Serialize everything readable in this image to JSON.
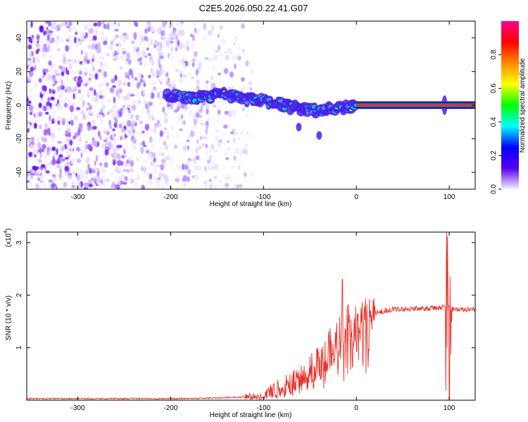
{
  "title": "C2E5.2026.050.22.41.G07",
  "chart_data": [
    {
      "type": "heatmap",
      "name": "spectrogram",
      "xlabel": "Height of straight line (km)",
      "ylabel": "Frequency (Hz)",
      "xlim": [
        -355,
        128
      ],
      "ylim": [
        -50,
        50
      ],
      "x_ticks": [
        -300,
        -200,
        -100,
        0,
        100
      ],
      "x_tick_labels": [
        "-300",
        "-200",
        "-100",
        "0",
        "100"
      ],
      "y_ticks": [
        -40,
        -20,
        0,
        20,
        40
      ],
      "y_tick_labels": [
        "-40",
        "-20",
        "0",
        "20",
        "40"
      ],
      "noise_region_x": [
        -355,
        -120
      ],
      "signal_track": {
        "x": [
          -205,
          -180,
          -160,
          -140,
          -120,
          -100,
          -80,
          -60,
          -40,
          -20,
          0,
          128
        ],
        "freq": [
          6,
          4,
          5,
          6,
          4,
          3,
          0,
          -2,
          -3,
          -2,
          0,
          0
        ]
      },
      "spikes": [
        {
          "x": -62,
          "freq": -13
        },
        {
          "x": -40,
          "freq": -18
        },
        {
          "x": 95,
          "freq": 0
        }
      ],
      "colorbar": {
        "label": "Normalized spectral amplitude",
        "range": [
          0,
          1
        ],
        "ticks": [
          0.0,
          0.2,
          0.4,
          0.6,
          0.8
        ],
        "tick_labels": [
          "0.0",
          "0.2",
          "0.4",
          "0.6",
          "0.8"
        ],
        "colors": [
          "#f4f0ff",
          "#5500ee",
          "#0000ff",
          "#00ffff",
          "#00ff00",
          "#ffff00",
          "#ff8800",
          "#ff0000",
          "#ff0088"
        ]
      },
      "track_color": "#00c8c8",
      "track_core_color": "#e81850"
    },
    {
      "type": "line",
      "name": "snr",
      "xlabel": "Height of straight line (km)",
      "ylabel": "SNR (10 * v/v)",
      "scale_label": "(x10",
      "scale_exponent": "4",
      "scale_suffix": ")",
      "xlim": [
        -355,
        128
      ],
      "ylim": [
        0,
        3.2
      ],
      "x_ticks": [
        -300,
        -200,
        -100,
        0,
        100
      ],
      "x_tick_labels": [
        "-300",
        "-200",
        "-100",
        "0",
        "100"
      ],
      "y_ticks": [
        1,
        2,
        3
      ],
      "y_tick_labels": [
        "1",
        "2",
        "3"
      ],
      "color": "#e8312a",
      "series": [
        {
          "name": "SNR",
          "x": [
            -355,
            -300,
            -250,
            -200,
            -150,
            -120,
            -100,
            -85,
            -70,
            -55,
            -40,
            -30,
            -20,
            -10,
            0,
            10,
            20,
            30,
            40,
            60,
            80,
            90,
            95,
            100,
            105,
            110,
            128
          ],
          "values": [
            0.03,
            0.03,
            0.03,
            0.03,
            0.04,
            0.06,
            0.12,
            0.2,
            0.3,
            0.48,
            0.7,
            0.95,
            1.15,
            1.4,
            1.55,
            1.62,
            1.66,
            1.7,
            1.73,
            1.74,
            1.75,
            1.75,
            1.8,
            1.76,
            1.73,
            1.72,
            1.72
          ]
        }
      ],
      "peaks": [
        {
          "x": -15,
          "value": 2.3
        },
        {
          "x": 97,
          "value": 3.2
        },
        {
          "x": 100,
          "value": 0.02
        }
      ]
    }
  ]
}
